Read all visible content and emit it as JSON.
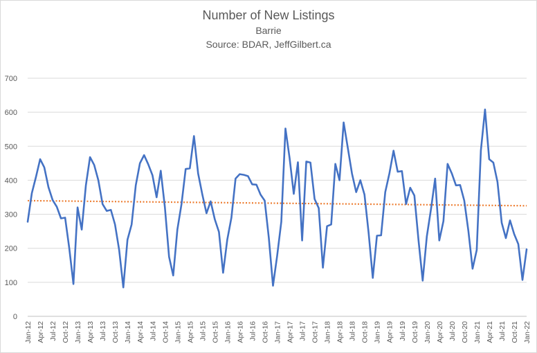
{
  "chart_data": {
    "type": "line",
    "title": "Number of New Listings",
    "subtitle": "Barrie",
    "source": "Source: BDAR, JeffGilbert.ca",
    "ylim": [
      0,
      700
    ],
    "yticks": [
      0,
      100,
      200,
      300,
      400,
      500,
      600,
      700
    ],
    "grid": true,
    "xtick_labels": [
      "Jan-12",
      "Apr-12",
      "Jul-12",
      "Oct-12",
      "Jan-13",
      "Apr-13",
      "Jul-13",
      "Oct-13",
      "Jan-14",
      "Apr-14",
      "Jul-14",
      "Oct-14",
      "Jan-15",
      "Apr-15",
      "Jul-15",
      "Oct-15",
      "Jan-16",
      "Apr-16",
      "Jul-16",
      "Oct-16",
      "Jan-17",
      "Apr-17",
      "Jul-17",
      "Oct-17",
      "Jan-18",
      "Apr-18",
      "Jul-18",
      "Oct-18",
      "Jan-19",
      "Apr-19",
      "Jul-19",
      "Oct-19",
      "Jan-20",
      "Apr-20",
      "Jul-20",
      "Oct-20",
      "Jan-21",
      "Apr-21",
      "Jul-21",
      "Oct-21",
      "Jan-22"
    ],
    "series": [
      {
        "color": "#4472c4",
        "style": "solid",
        "values": [
          278,
          362,
          410,
          462,
          438,
          380,
          342,
          322,
          288,
          290,
          200,
          95,
          320,
          255,
          385,
          468,
          445,
          400,
          330,
          310,
          313,
          270,
          195,
          85,
          225,
          270,
          385,
          450,
          474,
          447,
          415,
          350,
          428,
          320,
          175,
          120,
          255,
          330,
          433,
          435,
          530,
          420,
          358,
          303,
          338,
          285,
          248,
          128,
          225,
          290,
          405,
          418,
          416,
          412,
          388,
          387,
          358,
          340,
          230,
          90,
          178,
          278,
          552,
          465,
          360,
          453,
          223,
          455,
          452,
          345,
          318,
          143,
          265,
          270,
          448,
          400,
          570,
          495,
          420,
          365,
          400,
          358,
          245,
          113,
          237,
          238,
          365,
          420,
          487,
          425,
          427,
          330,
          378,
          355,
          223,
          105,
          235,
          315,
          405,
          223,
          280,
          448,
          420,
          385,
          386,
          340,
          250,
          140,
          195,
          488,
          608,
          462,
          452,
          395,
          275,
          230,
          282,
          242,
          212,
          107,
          197
        ]
      },
      {
        "name": "trend",
        "color": "#ed7d31",
        "style": "dotted",
        "type": "linear-trend",
        "values": [
          340,
          325
        ]
      }
    ]
  }
}
